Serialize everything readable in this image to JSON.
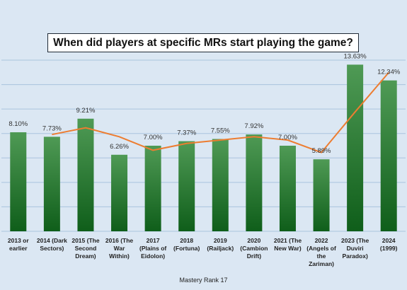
{
  "chart_data": {
    "type": "bar",
    "title": "When did players at specific MRs start playing the game?",
    "xlabel": "Mastery Rank 17",
    "ylabel": "",
    "categories": [
      "2013 or earlier",
      "2014 (Dark Sectors)",
      "2015 (The Second Dream)",
      "2016 (The War Within)",
      "2017 (Plains of Eidolon)",
      "2018 (Fortuna)",
      "2019 (Railjack)",
      "2020 (Cambion Drift)",
      "2021 (The New War)",
      "2022 (Angels of the Zariman)",
      "2023 (The Duviri Paradox)",
      "2024 (1999)"
    ],
    "category_lines": [
      [
        "2013 or",
        "earlier"
      ],
      [
        "2014 (Dark",
        "Sectors)"
      ],
      [
        "2015 (The",
        "Second",
        "Dream)"
      ],
      [
        "2016 (The",
        "War",
        "Within)"
      ],
      [
        "2017",
        "(Plains of",
        "Eidolon)"
      ],
      [
        "2018",
        "(Fortuna)"
      ],
      [
        "2019",
        "(Railjack)"
      ],
      [
        "2020",
        "(Cambion",
        "Drift)"
      ],
      [
        "2021 (The",
        "New War)"
      ],
      [
        "2022",
        "(Angels of",
        "the",
        "Zariman)"
      ],
      [
        "2023 (The",
        "Duviri",
        "Paradox)"
      ],
      [
        "2024",
        "(1999)"
      ]
    ],
    "values": [
      8.1,
      7.73,
      9.21,
      6.26,
      7.0,
      7.37,
      7.55,
      7.92,
      7.0,
      5.89,
      13.63,
      12.34
    ],
    "value_labels": [
      "8.10%",
      "7.73%",
      "9.21%",
      "6.26%",
      "7.00%",
      "7.37%",
      "7.55%",
      "7.92%",
      "7.00%",
      "5.89%",
      "13.63%",
      "12.34%"
    ],
    "series": [
      {
        "values": [
          8.1,
          7.73,
          9.21,
          6.26,
          7.0,
          7.37,
          7.55,
          7.92,
          7.0,
          5.89,
          13.63,
          12.34
        ]
      }
    ],
    "trendline": {
      "type": "moving-average",
      "period": 2
    },
    "ylim": [
      0,
      14
    ],
    "grid": true,
    "legend": "none",
    "colors": {
      "background": "#dbe7f3",
      "bar_top": "#4f9a55",
      "bar_bottom": "#0f5e1a",
      "trendline": "#ed7d31",
      "grid": "#a9c4de",
      "label": "#333333"
    }
  }
}
